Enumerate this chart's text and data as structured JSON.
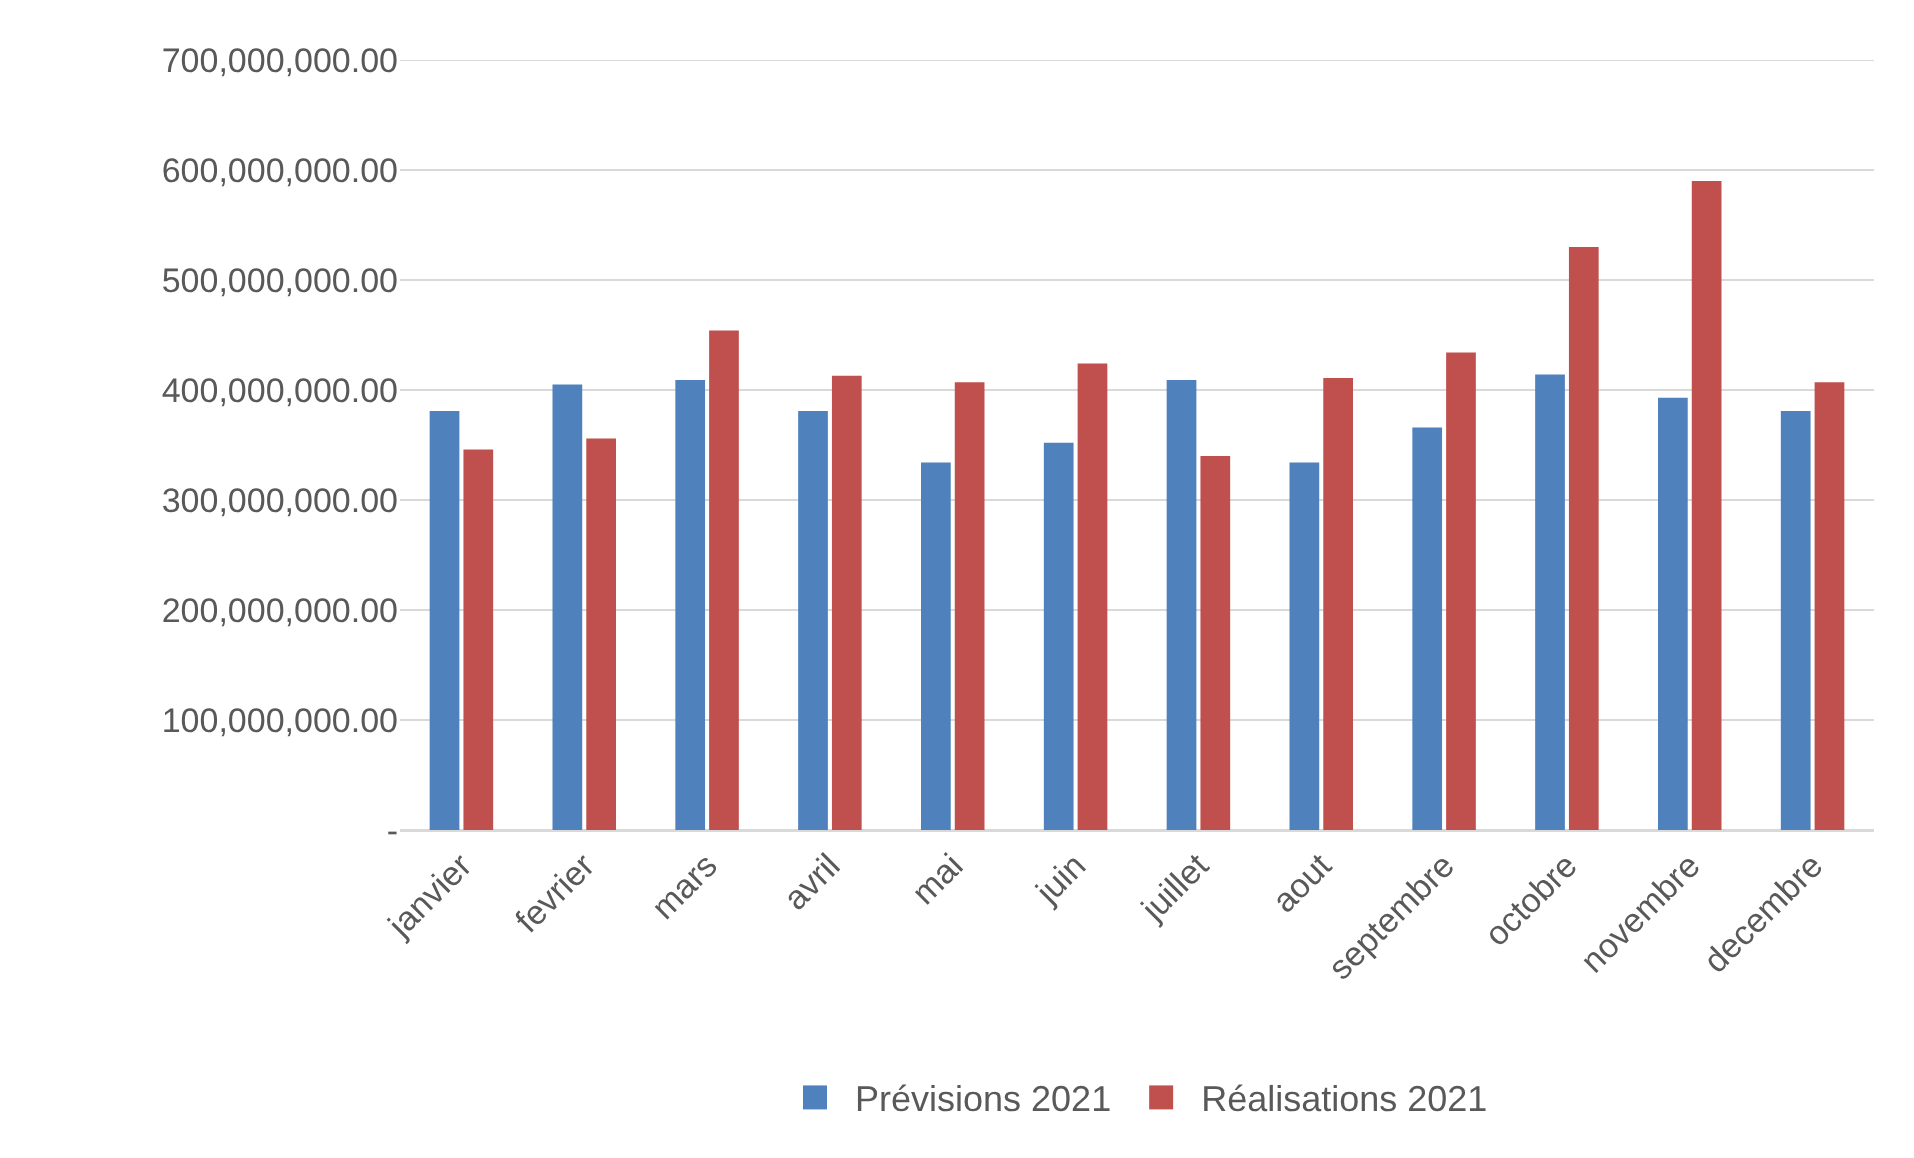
{
  "chart_data": {
    "type": "bar",
    "categories": [
      "janvier",
      "fevrier",
      "mars",
      "avril",
      "mai",
      "juin",
      "juillet",
      "aout",
      "septembre",
      "octobre",
      "novembre",
      "decembre"
    ],
    "series": [
      {
        "name": "Prévisions 2021",
        "color": "#4f81bd",
        "values": [
          381000000,
          405000000,
          409000000,
          381000000,
          334000000,
          352000000,
          409000000,
          334000000,
          366000000,
          414000000,
          393000000,
          381000000
        ]
      },
      {
        "name": "Réalisations 2021",
        "color": "#c0504d",
        "values": [
          346000000,
          356000000,
          454000000,
          413000000,
          407000000,
          424000000,
          340000000,
          411000000,
          434000000,
          530000000,
          590000000,
          407000000
        ]
      }
    ],
    "ylim": [
      0,
      700000000
    ],
    "yticks": [
      {
        "value": 0,
        "label": "-"
      },
      {
        "value": 100000000,
        "label": "100,000,000.00"
      },
      {
        "value": 200000000,
        "label": "200,000,000.00"
      },
      {
        "value": 300000000,
        "label": "300,000,000.00"
      },
      {
        "value": 400000000,
        "label": "400,000,000.00"
      },
      {
        "value": 500000000,
        "label": "500,000,000.00"
      },
      {
        "value": 600000000,
        "label": "600,000,000.00"
      },
      {
        "value": 700000000,
        "label": "700,000,000.00"
      }
    ],
    "grid": "y",
    "legend": "bottom"
  }
}
